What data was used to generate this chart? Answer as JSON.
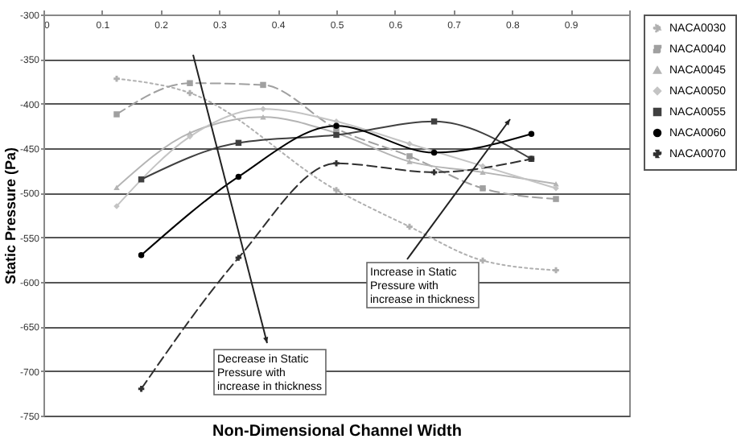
{
  "chart_data": {
    "type": "line",
    "xlabel": "Non-Dimensional Channel Width",
    "ylabel": "Static Pressure (Pa)",
    "xlim": [
      0,
      1
    ],
    "xticks": [
      0,
      0.1,
      0.2,
      0.3,
      0.4,
      0.5,
      0.6,
      0.7,
      0.8,
      0.9,
      {
        "value": 1,
        "label": null
      }
    ],
    "ylim": [
      -750,
      -300
    ],
    "yticks": [
      -300,
      -350,
      -400,
      -450,
      -500,
      -550,
      -600,
      -650,
      -700,
      -750
    ],
    "grid": "y",
    "legend": "right",
    "series": [
      {
        "name": "NACA0030",
        "color": "#b0b0b0",
        "marker": "cross",
        "line_style": "dotted",
        "x": [
          0.125,
          0.25,
          0.5,
          0.625,
          0.75,
          0.875
        ],
        "values": [
          -372,
          -388,
          -497,
          -538,
          -576,
          -587
        ]
      },
      {
        "name": "NACA0040",
        "color": "#a0a0a0",
        "marker": "square",
        "line_style": "dashed",
        "x": [
          0.125,
          0.25,
          0.375,
          0.5,
          0.625,
          0.75,
          0.875
        ],
        "values": [
          -412,
          -377,
          -379,
          -428,
          -459,
          -495,
          -507
        ]
      },
      {
        "name": "NACA0045",
        "color": "#b4b4b4",
        "marker": "triangle",
        "line_style": "solid",
        "x": [
          0.125,
          0.25,
          0.375,
          0.5,
          0.625,
          0.75,
          0.875
        ],
        "values": [
          -494,
          -433,
          -415,
          -433,
          -465,
          -477,
          -490
        ]
      },
      {
        "name": "NACA0050",
        "color": "#c4c4c4",
        "marker": "diamond",
        "line_style": "solid",
        "x": [
          0.125,
          0.25,
          0.375,
          0.5,
          0.625,
          0.75,
          0.875
        ],
        "values": [
          -515,
          -437,
          -406,
          -420,
          -445,
          -470,
          -495
        ]
      },
      {
        "name": "NACA0055",
        "color": "#404040",
        "marker": "square",
        "line_style": "solid",
        "x": [
          0.167,
          0.333,
          0.5,
          0.667,
          0.833
        ],
        "values": [
          -485,
          -444,
          -435,
          -420,
          -462
        ]
      },
      {
        "name": "NACA0060",
        "color": "#000000",
        "marker": "circle",
        "line_style": "solid",
        "x": [
          0.167,
          0.333,
          0.5,
          0.667,
          0.833
        ],
        "values": [
          -570,
          -482,
          -425,
          -455,
          -434
        ]
      },
      {
        "name": "NACA0070",
        "color": "#303030",
        "marker": "cross",
        "line_style": "dashed",
        "x": [
          0.167,
          0.333,
          0.5,
          0.667,
          0.833
        ],
        "values": [
          -720,
          -573,
          -467,
          -477,
          -462
        ]
      }
    ],
    "annotations": [
      "Decrease in Static Pressure with increase in thickness",
      "Increase in Static Pressure with increase in thickness"
    ]
  }
}
